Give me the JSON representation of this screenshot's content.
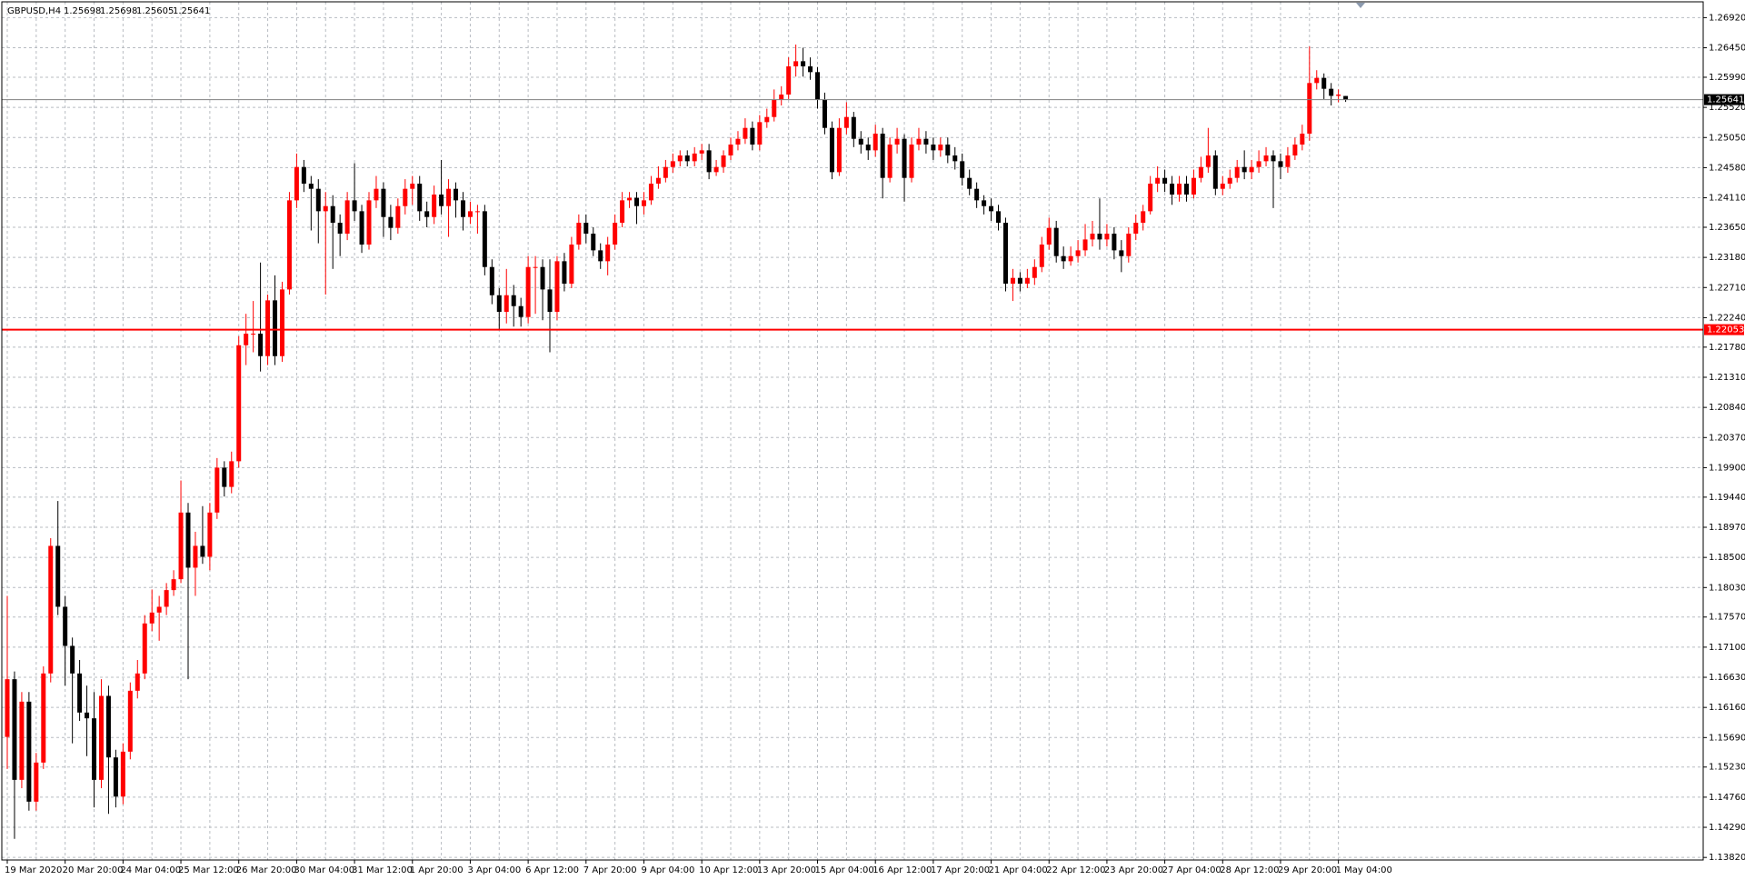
{
  "chart_data": {
    "type": "candlestick",
    "title": "GBPUSD,H4",
    "up_color": "#ff0000",
    "down_color": "#000000",
    "grid": true,
    "x": [
      "19 Mar 2020",
      null,
      null,
      null,
      null,
      null,
      null,
      null,
      "20 Mar 20:00",
      null,
      null,
      null,
      null,
      null,
      null,
      null,
      "24 Mar 04:00",
      null,
      null,
      null,
      null,
      null,
      null,
      null,
      "25 Mar 12:00",
      null,
      null,
      null,
      null,
      null,
      null,
      null,
      "26 Mar 20:00",
      null,
      null,
      null,
      null,
      null,
      null,
      null,
      "30 Mar 04:00",
      null,
      null,
      null,
      null,
      null,
      null,
      null,
      "31 Mar 12:00",
      null,
      null,
      null,
      null,
      null,
      null,
      null,
      "1 Apr 20:00",
      null,
      null,
      null,
      null,
      null,
      null,
      null,
      "3 Apr 04:00",
      null,
      null,
      null,
      null,
      null,
      null,
      null,
      "6 Apr 12:00",
      null,
      null,
      null,
      null,
      null,
      null,
      null,
      "7 Apr 20:00",
      null,
      null,
      null,
      null,
      null,
      null,
      null,
      "9 Apr 04:00",
      null,
      null,
      null,
      null,
      null,
      null,
      null,
      "10 Apr 12:00",
      null,
      null,
      null,
      null,
      null,
      null,
      null,
      "13 Apr 20:00",
      null,
      null,
      null,
      null,
      null,
      null,
      null,
      "15 Apr 04:00",
      null,
      null,
      null,
      null,
      null,
      null,
      null,
      "16 Apr 12:00",
      null,
      null,
      null,
      null,
      null,
      null,
      null,
      "17 Apr 20:00",
      null,
      null,
      null,
      null,
      null,
      null,
      null,
      "21 Apr 04:00",
      null,
      null,
      null,
      null,
      null,
      null,
      null,
      "22 Apr 12:00",
      null,
      null,
      null,
      null,
      null,
      null,
      null,
      "23 Apr 20:00",
      null,
      null,
      null,
      null,
      null,
      null,
      null,
      "27 Apr 04:00",
      null,
      null,
      null,
      null,
      null,
      null,
      null,
      "28 Apr 12:00",
      null,
      null,
      null,
      null,
      null,
      null,
      null,
      "29 Apr 20:00",
      null,
      null,
      null,
      null,
      null,
      null,
      null,
      "1 May 04:00",
      null
    ],
    "open": [
      1.157,
      1.166,
      1.1503,
      1.1625,
      1.1469,
      1.153,
      1.1669,
      1.1868,
      1.1773,
      1.1712,
      1.1669,
      1.1608,
      1.1599,
      1.1503,
      1.1634,
      1.1538,
      1.1477,
      1.1547,
      1.1642,
      1.1669,
      1.1747,
      1.1764,
      1.1773,
      1.1799,
      1.1816,
      1.192,
      1.1834,
      1.1868,
      1.1851,
      1.192,
      1.199,
      1.196,
      1.2,
      1.2181,
      1.2199,
      1.2199,
      1.2164,
      1.2251,
      1.2164,
      1.2268,
      1.2407,
      1.2459,
      1.2433,
      1.2425,
      1.239,
      1.2398,
      1.2372,
      1.2355,
      1.2407,
      1.239,
      1.2338,
      1.2407,
      1.2425,
      1.2381,
      1.2364,
      1.2398,
      1.2425,
      1.2433,
      1.239,
      1.2381,
      1.2416,
      1.2398,
      1.2425,
      1.2407,
      1.2381,
      1.239,
      1.239,
      1.2303,
      1.2259,
      1.2233,
      1.2259,
      1.2242,
      1.2225,
      1.2303,
      1.2303,
      1.2268,
      1.2233,
      1.2312,
      1.2277,
      1.2338,
      1.2372,
      1.2355,
      1.2329,
      1.2312,
      1.2338,
      1.2372,
      1.2407,
      1.2411,
      1.2398,
      1.2407,
      1.2433,
      1.2442,
      1.2459,
      1.2468,
      1.2477,
      1.2468,
      1.248,
      1.2485,
      1.2451,
      1.2459,
      1.2477,
      1.2494,
      1.2503,
      1.252,
      1.2494,
      1.2529,
      1.2537,
      1.2564,
      1.2572,
      1.2616,
      1.2624,
      1.2616,
      1.2607,
      1.2564,
      1.252,
      1.2451,
      1.252,
      1.2537,
      1.2503,
      1.2494,
      1.2485,
      1.2511,
      1.2442,
      1.2494,
      1.2503,
      1.2442,
      1.2494,
      1.2503,
      1.2494,
      1.2485,
      1.2494,
      1.2477,
      1.2468,
      1.2442,
      1.2425,
      1.2407,
      1.2398,
      1.239,
      1.2372,
      1.2277,
      1.2286,
      1.2277,
      1.2286,
      1.2303,
      1.2338,
      1.2364,
      1.232,
      1.2312,
      1.232,
      1.2329,
      1.2346,
      1.2355,
      1.2346,
      1.2355,
      1.2329,
      1.232,
      1.2355,
      1.2372,
      1.239,
      1.2433,
      1.2442,
      1.2433,
      1.2416,
      1.2433,
      1.2416,
      1.2442,
      1.2459,
      1.2477,
      1.2425,
      1.2433,
      1.2442,
      1.2459,
      1.2451,
      1.2459,
      1.2468,
      1.2477,
      1.2468,
      1.2459,
      1.2477,
      1.2494,
      1.2511,
      1.259,
      1.2598,
      1.2581,
      1.257,
      1.25698
    ],
    "high": [
      1.179,
      1.1672,
      1.164,
      1.164,
      1.1545,
      1.168,
      1.188,
      1.1938,
      1.179,
      1.1725,
      1.169,
      1.165,
      1.164,
      1.166,
      1.165,
      1.155,
      1.156,
      1.1655,
      1.169,
      1.176,
      1.18,
      1.179,
      1.181,
      1.183,
      1.197,
      1.1935,
      1.189,
      1.193,
      1.1935,
      1.2005,
      1.2,
      1.2015,
      1.2195,
      1.223,
      1.225,
      1.231,
      1.226,
      1.229,
      1.228,
      1.242,
      1.248,
      1.247,
      1.2445,
      1.244,
      1.242,
      1.2415,
      1.2385,
      1.242,
      1.2465,
      1.24,
      1.242,
      1.2445,
      1.2435,
      1.24,
      1.241,
      1.244,
      1.2445,
      1.2445,
      1.2405,
      1.243,
      1.247,
      1.244,
      1.2435,
      1.242,
      1.2405,
      1.24,
      1.24,
      1.2315,
      1.227,
      1.23,
      1.2275,
      1.2255,
      1.232,
      1.232,
      1.2315,
      1.2315,
      1.232,
      1.2325,
      1.235,
      1.2385,
      1.2385,
      1.2365,
      1.234,
      1.235,
      1.2385,
      1.242,
      1.242,
      1.242,
      1.242,
      1.2445,
      1.246,
      1.247,
      1.248,
      1.2485,
      1.2485,
      1.249,
      1.2495,
      1.2495,
      1.247,
      1.2485,
      1.2505,
      1.2515,
      1.2535,
      1.253,
      1.254,
      1.255,
      1.258,
      1.2585,
      1.263,
      1.265,
      1.2645,
      1.263,
      1.2615,
      1.2575,
      1.253,
      1.2535,
      1.256,
      1.2545,
      1.2515,
      1.2505,
      1.2525,
      1.252,
      1.2505,
      1.252,
      1.251,
      1.2505,
      1.252,
      1.2515,
      1.2505,
      1.2505,
      1.2505,
      1.249,
      1.248,
      1.2455,
      1.2435,
      1.2415,
      1.241,
      1.24,
      1.238,
      1.23,
      1.2295,
      1.23,
      1.2315,
      1.235,
      1.238,
      1.2375,
      1.2335,
      1.2335,
      1.2345,
      1.237,
      1.2375,
      1.241,
      1.237,
      1.2365,
      1.2345,
      1.2365,
      1.2385,
      1.24,
      1.2445,
      1.246,
      1.2455,
      1.2445,
      1.2445,
      1.2445,
      1.2455,
      1.2475,
      1.252,
      1.2485,
      1.2445,
      1.2455,
      1.247,
      1.2485,
      1.247,
      1.2485,
      1.249,
      1.2485,
      1.248,
      1.249,
      1.2505,
      1.2525,
      1.2647,
      1.261,
      1.2605,
      1.259,
      1.258,
      1.25698
    ],
    "low": [
      1.152,
      1.1411,
      1.149,
      1.1455,
      1.1455,
      1.152,
      1.1655,
      1.176,
      1.165,
      1.156,
      1.1595,
      1.154,
      1.146,
      1.149,
      1.145,
      1.146,
      1.1465,
      1.1535,
      1.163,
      1.166,
      1.1735,
      1.172,
      1.176,
      1.179,
      1.181,
      1.166,
      1.179,
      1.184,
      1.183,
      1.191,
      1.1945,
      1.195,
      1.199,
      1.215,
      1.217,
      1.214,
      1.215,
      1.215,
      1.2155,
      1.226,
      1.2395,
      1.242,
      1.236,
      1.234,
      1.226,
      1.23,
      1.232,
      1.2345,
      1.2375,
      1.2325,
      1.233,
      1.2395,
      1.235,
      1.2345,
      1.2355,
      1.2385,
      1.24,
      1.2375,
      1.2365,
      1.237,
      1.2385,
      1.235,
      1.238,
      1.236,
      1.237,
      1.2355,
      1.229,
      1.2245,
      1.2205,
      1.2215,
      1.221,
      1.221,
      1.2215,
      1.223,
      1.222,
      1.217,
      1.222,
      1.2265,
      1.227,
      1.233,
      1.234,
      1.232,
      1.23,
      1.229,
      1.233,
      1.2365,
      1.2395,
      1.237,
      1.2385,
      1.24,
      1.2425,
      1.2435,
      1.245,
      1.246,
      1.246,
      1.246,
      1.247,
      1.244,
      1.2445,
      1.245,
      1.247,
      1.2485,
      1.2495,
      1.2485,
      1.2485,
      1.252,
      1.253,
      1.2555,
      1.2565,
      1.26,
      1.26,
      1.2595,
      1.255,
      1.251,
      1.244,
      1.2445,
      1.251,
      1.249,
      1.248,
      1.247,
      1.2475,
      1.241,
      1.2435,
      1.248,
      1.2405,
      1.2435,
      1.2485,
      1.248,
      1.247,
      1.2475,
      1.2465,
      1.2455,
      1.243,
      1.2415,
      1.2395,
      1.2385,
      1.2375,
      1.236,
      1.2265,
      1.225,
      1.2265,
      1.227,
      1.2275,
      1.2295,
      1.233,
      1.231,
      1.23,
      1.2305,
      1.231,
      1.232,
      1.2335,
      1.233,
      1.2335,
      1.2315,
      1.2295,
      1.231,
      1.2345,
      1.236,
      1.2385,
      1.242,
      1.242,
      1.24,
      1.2405,
      1.2405,
      1.241,
      1.2435,
      1.245,
      1.2415,
      1.2415,
      1.2425,
      1.2435,
      1.244,
      1.244,
      1.245,
      1.246,
      1.2395,
      1.244,
      1.245,
      1.247,
      1.2485,
      1.25,
      1.258,
      1.2565,
      1.2555,
      1.256,
      1.25605
    ],
    "close": [
      1.166,
      1.1503,
      1.1625,
      1.1469,
      1.153,
      1.1669,
      1.1868,
      1.1773,
      1.1712,
      1.1669,
      1.1608,
      1.1599,
      1.1503,
      1.1634,
      1.1538,
      1.1477,
      1.1547,
      1.1642,
      1.1669,
      1.1747,
      1.1764,
      1.1773,
      1.1799,
      1.1816,
      1.192,
      1.1834,
      1.1868,
      1.1851,
      1.192,
      1.199,
      1.196,
      1.2,
      1.2181,
      1.2199,
      1.2199,
      1.2164,
      1.2251,
      1.2164,
      1.2268,
      1.2407,
      1.2459,
      1.2433,
      1.2425,
      1.239,
      1.2398,
      1.2372,
      1.2355,
      1.2407,
      1.239,
      1.2338,
      1.2407,
      1.2425,
      1.2381,
      1.2364,
      1.2398,
      1.2425,
      1.2433,
      1.239,
      1.2381,
      1.2416,
      1.2398,
      1.2425,
      1.2407,
      1.2381,
      1.239,
      1.239,
      1.2303,
      1.2259,
      1.2233,
      1.2259,
      1.2242,
      1.2225,
      1.2303,
      1.2303,
      1.2268,
      1.2233,
      1.2312,
      1.2277,
      1.2338,
      1.2372,
      1.2355,
      1.2329,
      1.2312,
      1.2338,
      1.2372,
      1.2407,
      1.2411,
      1.2398,
      1.2407,
      1.2433,
      1.2442,
      1.2459,
      1.2468,
      1.2477,
      1.2468,
      1.248,
      1.2485,
      1.2451,
      1.2459,
      1.2477,
      1.2494,
      1.2503,
      1.252,
      1.2494,
      1.2529,
      1.2537,
      1.2564,
      1.2572,
      1.2616,
      1.2624,
      1.2616,
      1.2607,
      1.2564,
      1.252,
      1.2451,
      1.252,
      1.2537,
      1.2503,
      1.2494,
      1.2485,
      1.2511,
      1.2442,
      1.2494,
      1.2503,
      1.2442,
      1.2494,
      1.2503,
      1.2494,
      1.2485,
      1.2494,
      1.2477,
      1.2468,
      1.2442,
      1.2425,
      1.2407,
      1.2398,
      1.239,
      1.2372,
      1.2277,
      1.2286,
      1.2277,
      1.2286,
      1.2303,
      1.2338,
      1.2364,
      1.232,
      1.2312,
      1.232,
      1.2329,
      1.2346,
      1.2355,
      1.2346,
      1.2355,
      1.2329,
      1.232,
      1.2355,
      1.2372,
      1.239,
      1.2433,
      1.2442,
      1.2433,
      1.2416,
      1.2433,
      1.2416,
      1.2442,
      1.2459,
      1.2477,
      1.2425,
      1.2433,
      1.2442,
      1.2459,
      1.2451,
      1.2459,
      1.2468,
      1.2477,
      1.2468,
      1.2459,
      1.2477,
      1.2494,
      1.2511,
      1.259,
      1.2598,
      1.2581,
      1.257,
      1.2572,
      1.25641
    ],
    "ylim": [
      1.1378,
      1.2711
    ],
    "yticks": [
      {
        "value": 1.2692,
        "label": "1.26920"
      },
      {
        "value": 1.2645,
        "label": "1.26450"
      },
      {
        "value": 1.2599,
        "label": "1.25990"
      },
      {
        "value": 1.2552,
        "label": "1.25520"
      },
      {
        "value": 1.2505,
        "label": "1.25050"
      },
      {
        "value": 1.2458,
        "label": "1.24580"
      },
      {
        "value": 1.2411,
        "label": "1.24110"
      },
      {
        "value": 1.2365,
        "label": "1.23650"
      },
      {
        "value": 1.2318,
        "label": "1.23180"
      },
      {
        "value": 1.2271,
        "label": "1.22710"
      },
      {
        "value": 1.2224,
        "label": "1.22240"
      },
      {
        "value": 1.2178,
        "label": "1.21780"
      },
      {
        "value": 1.2131,
        "label": "1.21310"
      },
      {
        "value": 1.2084,
        "label": "1.20840"
      },
      {
        "value": 1.2037,
        "label": "1.20370"
      },
      {
        "value": 1.199,
        "label": "1.19900"
      },
      {
        "value": 1.1944,
        "label": "1.19440"
      },
      {
        "value": 1.1897,
        "label": "1.18970"
      },
      {
        "value": 1.185,
        "label": "1.18500"
      },
      {
        "value": 1.1803,
        "label": "1.18030"
      },
      {
        "value": 1.1757,
        "label": "1.17570"
      },
      {
        "value": 1.171,
        "label": "1.17100"
      },
      {
        "value": 1.1663,
        "label": "1.16630"
      },
      {
        "value": 1.1616,
        "label": "1.16160"
      },
      {
        "value": 1.1569,
        "label": "1.15690"
      },
      {
        "value": 1.1523,
        "label": "1.15230"
      },
      {
        "value": 1.1476,
        "label": "1.14760"
      },
      {
        "value": 1.1429,
        "label": "1.14290"
      },
      {
        "value": 1.1382,
        "label": "1.13820"
      }
    ],
    "bid_line": {
      "value": 1.25641,
      "color": "#808080"
    },
    "level_line": {
      "value": 1.22053,
      "color": "#ff0000"
    }
  }
}
